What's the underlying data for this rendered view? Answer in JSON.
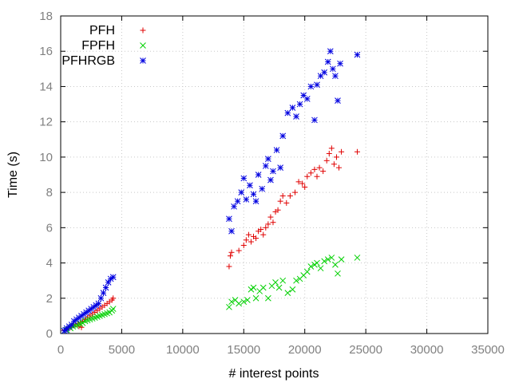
{
  "chart_data": {
    "type": "scatter",
    "xlabel": "# interest points",
    "ylabel": "Time (s)",
    "xlim": [
      0,
      35000
    ],
    "ylim": [
      0,
      18
    ],
    "x_ticks": [
      0,
      5000,
      10000,
      15000,
      20000,
      25000,
      30000,
      35000
    ],
    "y_ticks": [
      0,
      2,
      4,
      6,
      8,
      10,
      12,
      14,
      16,
      18
    ],
    "grid": true,
    "legend_position": "top-left",
    "series": [
      {
        "name": "PFH",
        "color": "#e00000",
        "marker": "plus",
        "points": [
          [
            300,
            0.2
          ],
          [
            500,
            0.25
          ],
          [
            800,
            0.35
          ],
          [
            1000,
            0.45
          ],
          [
            1200,
            0.5
          ],
          [
            1400,
            0.55
          ],
          [
            1500,
            0.4
          ],
          [
            1600,
            0.6
          ],
          [
            1700,
            0.35
          ],
          [
            1800,
            0.7
          ],
          [
            2000,
            0.8
          ],
          [
            2200,
            0.9
          ],
          [
            2400,
            1.0
          ],
          [
            2600,
            1.1
          ],
          [
            2800,
            1.2
          ],
          [
            3000,
            1.3
          ],
          [
            3200,
            1.4
          ],
          [
            3400,
            1.5
          ],
          [
            3600,
            1.6
          ],
          [
            3800,
            1.7
          ],
          [
            4000,
            1.8
          ],
          [
            4200,
            1.9
          ],
          [
            4300,
            2.0
          ],
          [
            13800,
            3.8
          ],
          [
            13900,
            4.4
          ],
          [
            14000,
            4.6
          ],
          [
            14600,
            4.7
          ],
          [
            15000,
            5.0
          ],
          [
            15200,
            5.3
          ],
          [
            15400,
            5.6
          ],
          [
            15600,
            5.2
          ],
          [
            15800,
            5.5
          ],
          [
            16000,
            5.4
          ],
          [
            16200,
            5.8
          ],
          [
            16400,
            5.9
          ],
          [
            16600,
            5.6
          ],
          [
            16800,
            6.0
          ],
          [
            17000,
            6.2
          ],
          [
            17200,
            6.6
          ],
          [
            17400,
            6.3
          ],
          [
            17600,
            6.9
          ],
          [
            17800,
            7.0
          ],
          [
            18000,
            7.5
          ],
          [
            18200,
            7.8
          ],
          [
            18500,
            7.4
          ],
          [
            18800,
            7.8
          ],
          [
            19200,
            8.0
          ],
          [
            19500,
            8.6
          ],
          [
            19800,
            8.5
          ],
          [
            20000,
            8.3
          ],
          [
            20200,
            8.9
          ],
          [
            20500,
            9.1
          ],
          [
            20800,
            9.3
          ],
          [
            21000,
            8.9
          ],
          [
            21200,
            9.4
          ],
          [
            21500,
            9.2
          ],
          [
            21800,
            9.8
          ],
          [
            22000,
            10.2
          ],
          [
            22200,
            10.5
          ],
          [
            22400,
            9.6
          ],
          [
            22600,
            10.0
          ],
          [
            22800,
            9.4
          ],
          [
            23000,
            10.3
          ],
          [
            24300,
            10.3
          ]
        ]
      },
      {
        "name": "FPFH",
        "color": "#00d000",
        "marker": "cross",
        "points": [
          [
            300,
            0.15
          ],
          [
            500,
            0.2
          ],
          [
            800,
            0.3
          ],
          [
            1000,
            0.4
          ],
          [
            1200,
            0.45
          ],
          [
            1400,
            0.5
          ],
          [
            1600,
            0.55
          ],
          [
            1800,
            0.6
          ],
          [
            2000,
            0.7
          ],
          [
            2200,
            0.75
          ],
          [
            2400,
            0.8
          ],
          [
            2600,
            0.85
          ],
          [
            2800,
            0.9
          ],
          [
            3000,
            0.95
          ],
          [
            3200,
            1.0
          ],
          [
            3400,
            1.05
          ],
          [
            3600,
            1.1
          ],
          [
            3800,
            1.15
          ],
          [
            4000,
            1.2
          ],
          [
            4200,
            1.3
          ],
          [
            4300,
            1.4
          ],
          [
            13800,
            1.5
          ],
          [
            14000,
            1.8
          ],
          [
            14300,
            1.9
          ],
          [
            14600,
            1.7
          ],
          [
            15000,
            1.8
          ],
          [
            15300,
            1.9
          ],
          [
            15600,
            2.5
          ],
          [
            15800,
            2.6
          ],
          [
            16000,
            2.0
          ],
          [
            16300,
            2.4
          ],
          [
            16600,
            2.6
          ],
          [
            17000,
            2.0
          ],
          [
            17300,
            2.7
          ],
          [
            17600,
            2.9
          ],
          [
            17900,
            2.6
          ],
          [
            18200,
            3.0
          ],
          [
            18600,
            2.3
          ],
          [
            19000,
            2.5
          ],
          [
            19300,
            3.0
          ],
          [
            19600,
            3.1
          ],
          [
            19900,
            3.3
          ],
          [
            20200,
            3.5
          ],
          [
            20500,
            3.8
          ],
          [
            20800,
            3.9
          ],
          [
            21000,
            4.0
          ],
          [
            21300,
            3.7
          ],
          [
            21600,
            4.1
          ],
          [
            21900,
            4.2
          ],
          [
            22200,
            4.3
          ],
          [
            22500,
            3.9
          ],
          [
            22700,
            3.4
          ],
          [
            23000,
            4.2
          ],
          [
            24300,
            4.3
          ]
        ]
      },
      {
        "name": "PFHRGB",
        "color": "#0000e0",
        "marker": "star",
        "points": [
          [
            300,
            0.15
          ],
          [
            400,
            0.2
          ],
          [
            500,
            0.3
          ],
          [
            700,
            0.4
          ],
          [
            900,
            0.5
          ],
          [
            1100,
            0.7
          ],
          [
            1300,
            0.8
          ],
          [
            1500,
            0.9
          ],
          [
            1700,
            1.0
          ],
          [
            1900,
            1.1
          ],
          [
            2100,
            1.2
          ],
          [
            2300,
            1.3
          ],
          [
            2500,
            1.4
          ],
          [
            2700,
            1.5
          ],
          [
            2900,
            1.6
          ],
          [
            3100,
            1.7
          ],
          [
            3300,
            2.0
          ],
          [
            3500,
            2.3
          ],
          [
            3700,
            2.6
          ],
          [
            3900,
            2.9
          ],
          [
            4100,
            3.1
          ],
          [
            4300,
            3.2
          ],
          [
            13800,
            6.5
          ],
          [
            14000,
            5.8
          ],
          [
            14200,
            7.2
          ],
          [
            14500,
            7.5
          ],
          [
            14800,
            8.0
          ],
          [
            15000,
            8.8
          ],
          [
            15200,
            7.6
          ],
          [
            15500,
            8.4
          ],
          [
            15800,
            7.9
          ],
          [
            16000,
            7.5
          ],
          [
            16200,
            9.0
          ],
          [
            16500,
            8.2
          ],
          [
            16800,
            9.5
          ],
          [
            17000,
            9.9
          ],
          [
            17200,
            8.7
          ],
          [
            17400,
            9.2
          ],
          [
            17700,
            10.4
          ],
          [
            18000,
            9.4
          ],
          [
            18200,
            11.2
          ],
          [
            18600,
            12.5
          ],
          [
            19000,
            12.8
          ],
          [
            19300,
            12.3
          ],
          [
            19600,
            13.0
          ],
          [
            19900,
            13.5
          ],
          [
            20200,
            13.3
          ],
          [
            20500,
            14.0
          ],
          [
            20800,
            12.1
          ],
          [
            21000,
            14.1
          ],
          [
            21300,
            14.6
          ],
          [
            21600,
            14.8
          ],
          [
            21900,
            15.4
          ],
          [
            22100,
            16.0
          ],
          [
            22300,
            15.0
          ],
          [
            22500,
            14.6
          ],
          [
            22700,
            13.2
          ],
          [
            22900,
            15.3
          ],
          [
            24300,
            15.8
          ]
        ]
      }
    ]
  }
}
